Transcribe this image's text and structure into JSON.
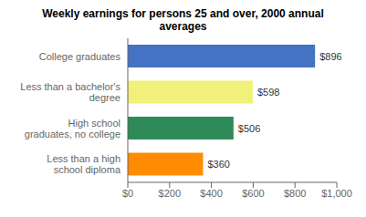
{
  "chart_data": {
    "type": "bar",
    "orientation": "horizontal",
    "title": "Weekly earnings for persons 25 and over, 2000 annual\naverages",
    "categories": [
      "Less than a high\nschool diploma",
      "High school\ngraduates, no college",
      "Less than a bachelor's\ndegree",
      "College graduates"
    ],
    "values": [
      360,
      506,
      598,
      896
    ],
    "value_labels": [
      "$360",
      "$506",
      "$598",
      "$896"
    ],
    "data_labels": true,
    "colors": [
      "#FF8C00",
      "#2E8B57",
      "#F0F07A",
      "#4472C4"
    ],
    "xlim": [
      0,
      1000
    ],
    "xticks": [
      {
        "value": 0,
        "label": "$0"
      },
      {
        "value": 200,
        "label": "$200"
      },
      {
        "value": 400,
        "label": "$400"
      },
      {
        "value": 600,
        "label": "$600"
      },
      {
        "value": 800,
        "label": "$800"
      },
      {
        "value": 1000,
        "label": "$1,000"
      }
    ],
    "grid": false
  }
}
